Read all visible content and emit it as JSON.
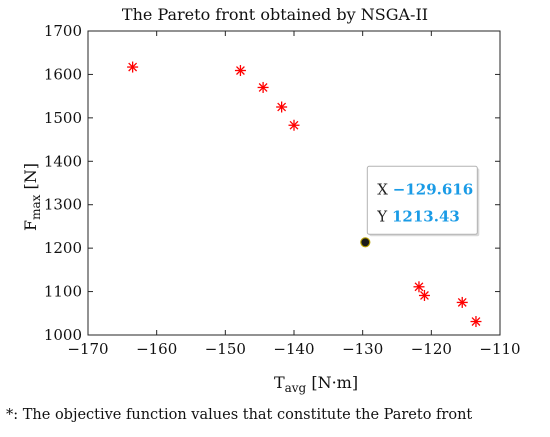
{
  "chart_data": {
    "type": "scatter",
    "title": "The Pareto front obtained by NSGA-II",
    "xlabel": {
      "main": "T",
      "sub": "avg",
      "unit": " [N·m]"
    },
    "ylabel": {
      "main": "F",
      "sub": "max",
      "unit": " [N]"
    },
    "xlim": [
      -170,
      -110
    ],
    "ylim": [
      1000,
      1700
    ],
    "xticks": [
      -170,
      -160,
      -150,
      -140,
      -130,
      -120,
      -110
    ],
    "yticks": [
      1000,
      1100,
      1200,
      1300,
      1400,
      1500,
      1600,
      1700
    ],
    "grid": false,
    "marker": "asterisk",
    "marker_color": "#ff0000",
    "points": [
      {
        "x": -163.5,
        "y": 1617
      },
      {
        "x": -147.8,
        "y": 1609
      },
      {
        "x": -144.5,
        "y": 1570
      },
      {
        "x": -141.8,
        "y": 1525
      },
      {
        "x": -140.0,
        "y": 1483
      },
      {
        "x": -121.8,
        "y": 1111
      },
      {
        "x": -121.0,
        "y": 1091
      },
      {
        "x": -115.5,
        "y": 1075
      },
      {
        "x": -113.5,
        "y": 1031
      }
    ],
    "highlight_point": {
      "x": -129.616,
      "y": 1213.43
    },
    "datatip": {
      "x_label": "X",
      "x_value": "−129.616",
      "y_label": "Y",
      "y_value": "1213.43",
      "value_color": "#1a9be6"
    }
  },
  "footnote": "*: The objective function values that constitute the Pareto front"
}
